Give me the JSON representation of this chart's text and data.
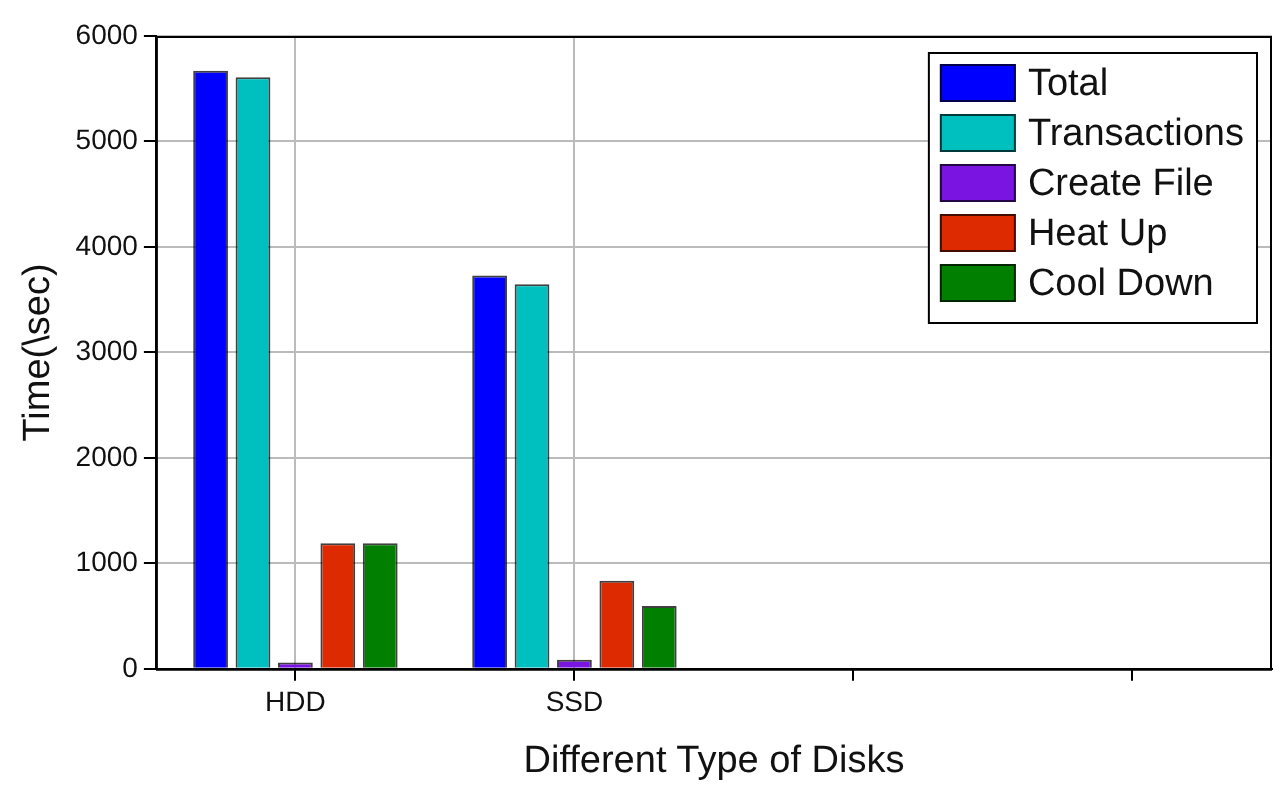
{
  "chart_data": {
    "type": "bar",
    "xlabel": "Different Type of Disks",
    "ylabel": "Time(\\sec)",
    "categories": [
      "HDD",
      "SSD",
      null,
      null
    ],
    "series": [
      {
        "name": "Total",
        "color": "#0000ff",
        "values": [
          5670,
          3730,
          null,
          null
        ]
      },
      {
        "name": "Transactions",
        "color": "#00bfbf",
        "values": [
          5610,
          3645,
          null,
          null
        ]
      },
      {
        "name": "Create File",
        "color": "#7a14e0",
        "values": [
          60,
          85,
          null,
          null
        ]
      },
      {
        "name": "Heat Up",
        "color": "#dd2a00",
        "values": [
          1190,
          835,
          null,
          null
        ]
      },
      {
        "name": "Cool Down",
        "color": "#007f00",
        "values": [
          1190,
          595,
          null,
          null
        ]
      }
    ],
    "ylim": [
      0,
      6000
    ],
    "yticks": [
      0,
      1000,
      2000,
      3000,
      4000,
      5000,
      6000
    ],
    "grid": true,
    "legend": "top right"
  }
}
